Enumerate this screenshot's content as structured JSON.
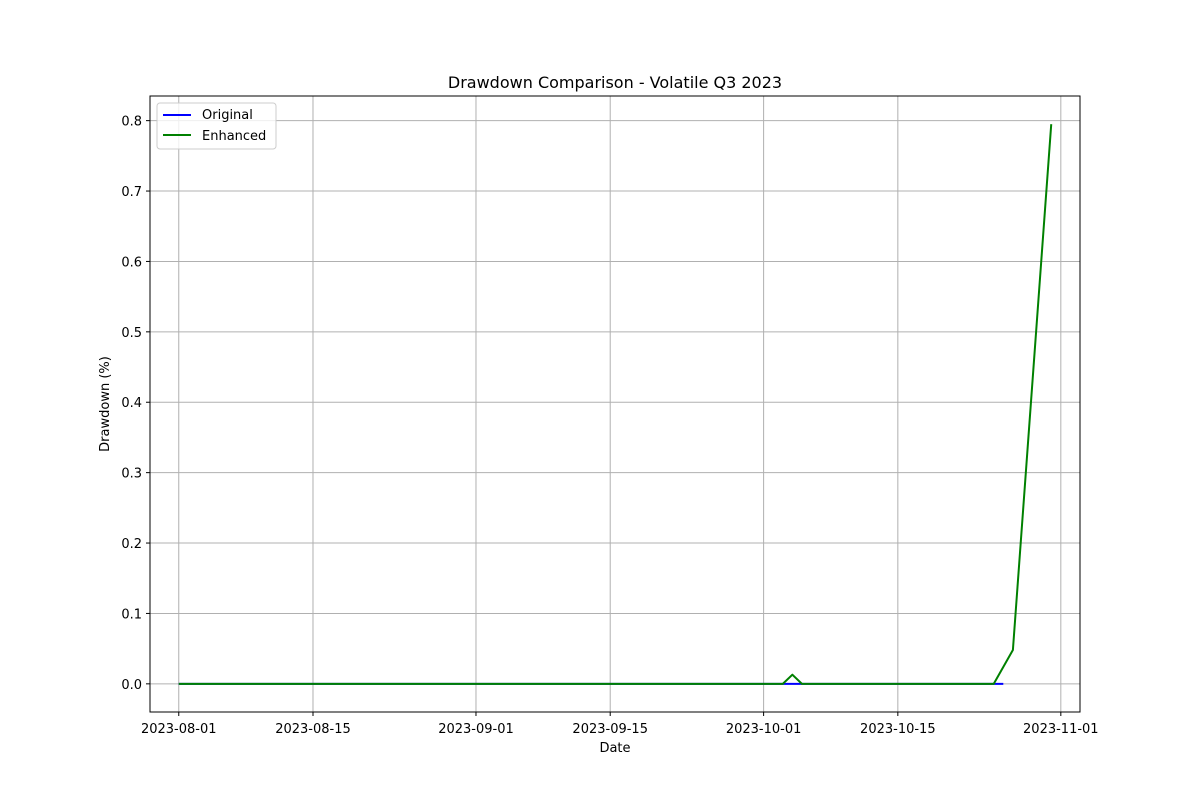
{
  "chart_data": {
    "type": "line",
    "title": "Drawdown Comparison - Volatile Q3 2023",
    "xlabel": "Date",
    "ylabel": "Drawdown (%)",
    "x_type": "date",
    "xlim": [
      "2023-07-29",
      "2023-11-03"
    ],
    "ylim": [
      -0.04,
      0.835
    ],
    "x_ticks": [
      "2023-08-01",
      "2023-08-15",
      "2023-09-01",
      "2023-09-15",
      "2023-10-01",
      "2023-10-15",
      "2023-11-01"
    ],
    "y_ticks": [
      0.0,
      0.1,
      0.2,
      0.3,
      0.4,
      0.5,
      0.6,
      0.7,
      0.8
    ],
    "y_tick_labels": [
      "0.0",
      "0.1",
      "0.2",
      "0.3",
      "0.4",
      "0.5",
      "0.6",
      "0.7",
      "0.8"
    ],
    "grid": true,
    "legend_position": "upper-left",
    "series": [
      {
        "name": "Original",
        "color": "#0000ff",
        "points": [
          [
            "2023-08-01",
            0.0
          ],
          [
            "2023-10-03",
            0.0
          ],
          [
            "2023-10-04",
            0.0
          ],
          [
            "2023-10-05",
            0.0
          ],
          [
            "2023-10-26",
            0.0
          ]
        ]
      },
      {
        "name": "Enhanced",
        "color": "#008000",
        "points": [
          [
            "2023-08-01",
            0.0
          ],
          [
            "2023-10-03",
            0.0
          ],
          [
            "2023-10-04",
            0.013
          ],
          [
            "2023-10-05",
            0.0
          ],
          [
            "2023-10-25",
            0.0
          ],
          [
            "2023-10-27",
            0.048
          ],
          [
            "2023-10-31",
            0.795
          ]
        ]
      }
    ]
  }
}
